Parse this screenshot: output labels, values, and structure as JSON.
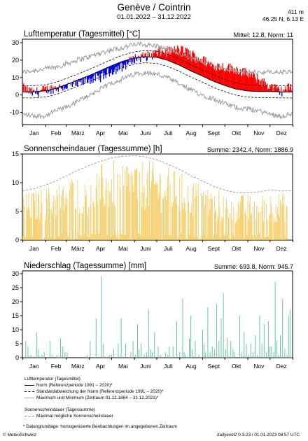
{
  "header": {
    "title": "Genève / Cointrin",
    "period": "01.01.2022 – 31.12.2022",
    "elevation": "411 m",
    "coords": "46.25 N, 6.13 E"
  },
  "months": [
    "Jan",
    "Feb",
    "März",
    "Apr",
    "Mai",
    "Juni",
    "Juli",
    "Aug",
    "Sept",
    "Okt",
    "Nov",
    "Dez"
  ],
  "colors": {
    "warm": "#ff0000",
    "cold": "#0000ff",
    "norm": "#000000",
    "extreme": "#999999",
    "sun": "#f5c242",
    "sunmax": "#888888",
    "rain": "#5cc4a4",
    "frame": "#000000",
    "grid": "#cfcfcf"
  },
  "panels": {
    "temp": {
      "title": "Lufttemperatur (Tagesmittel) [°C]",
      "stats": "Mittel: 12.8, Norm: 11"
    },
    "sun": {
      "title": "Sonnenscheindauer (Tagessumme) [h]",
      "stats": "Summe: 2342.4, Norm: 1886.9"
    },
    "rain": {
      "title": "Niederschlag (Tagessumme) [mm]",
      "stats": "Summe: 693.8, Norm: 945.7"
    }
  },
  "legend": {
    "temp_heading": "Lufttemperatur (Tagesmittel)",
    "norm": "Norm (Referenzperiode 1991 – 2020)*",
    "stddev": "Standardabweichung der Norm (Referenzperiode 1991 – 2020)*",
    "minmax": "Maximum und Minimum (Zeitraum 01.12.1864 – 31.12.2021)*",
    "sun_heading": "Sonnenscheindauer (Tagessumme)",
    "sun_max": "Maximal mögliche Sonnenscheindauer",
    "note": "* Datengrundlage: homogenisierte Beobachtungen im angegebenen Zeitraum"
  },
  "footer": {
    "left": "© MeteoSchweiz",
    "right": "dailyevol2 0.3.23 / 01.01.2023 08:57 UTC"
  },
  "chart_data": [
    {
      "type": "bar",
      "title": "Lufttemperatur (Tagesmittel) [°C]",
      "ylim": [
        -17,
        32
      ],
      "yticks": [
        -10,
        0,
        10,
        20,
        30
      ],
      "x_categories": [
        "Jan",
        "Feb",
        "März",
        "Apr",
        "Mai",
        "Juni",
        "Juli",
        "Aug",
        "Sept",
        "Okt",
        "Nov",
        "Dez"
      ],
      "anchors_day": [
        1,
        15,
        32,
        46,
        60,
        74,
        91,
        105,
        121,
        135,
        152,
        166,
        182,
        196,
        213,
        227,
        244,
        258,
        274,
        288,
        305,
        319,
        335,
        350,
        365
      ],
      "daily_mean_approx": [
        4,
        1,
        3,
        4,
        5,
        6,
        9,
        10,
        14,
        16,
        21,
        22,
        24,
        25,
        26,
        24,
        20,
        17,
        16,
        15,
        12,
        9,
        5,
        2,
        5
      ],
      "norm_approx": [
        1.8,
        1.8,
        2.4,
        3.8,
        6.0,
        8.3,
        11.2,
        13.8,
        16.8,
        19.2,
        21.3,
        22.0,
        21.6,
        20.0,
        17.0,
        14.0,
        10.8,
        8.0,
        5.4,
        3.5,
        2.3,
        2.0,
        2.0,
        1.8,
        1.8
      ],
      "stddev_range": 3.5,
      "max_record_approx": [
        13,
        14,
        15,
        16,
        18,
        20,
        22,
        24,
        26,
        27,
        29,
        29,
        28,
        26,
        24,
        21,
        19,
        17,
        15,
        14,
        13,
        13,
        13,
        13,
        13
      ],
      "min_record_approx": [
        -11,
        -12,
        -12,
        -9,
        -7,
        -4,
        0,
        3,
        7,
        9,
        12,
        13,
        12,
        10,
        6,
        3,
        0,
        -2,
        -5,
        -7,
        -8,
        -9,
        -11,
        -12,
        -11
      ],
      "legend": "Mittel: 12.8, Norm: 11"
    },
    {
      "type": "bar",
      "title": "Sonnenscheindauer (Tagessumme) [h]",
      "ylim": [
        0,
        15
      ],
      "yticks": [
        0,
        5,
        10,
        15
      ],
      "x_categories": [
        "Jan",
        "Feb",
        "März",
        "Apr",
        "Mai",
        "Juni",
        "Juli",
        "Aug",
        "Sept",
        "Okt",
        "Nov",
        "Dez"
      ],
      "max_possible_approx": [
        8.6,
        8.9,
        9.6,
        10.3,
        11.2,
        12.1,
        13.0,
        13.7,
        14.3,
        14.6,
        14.7,
        14.5,
        14.0,
        13.3,
        12.3,
        11.3,
        10.3,
        9.4,
        8.7,
        8.3,
        8.2,
        8.4,
        8.7,
        8.6,
        8.6
      ],
      "daily_values": "approximately 60-100% of the maximum on sunny days, near 0 on overcast days",
      "total": 2342.4,
      "norm": 1886.9
    },
    {
      "type": "bar",
      "title": "Niederschlag (Tagessumme) [mm]",
      "ylim": [
        0,
        31
      ],
      "yticks": [
        0,
        5,
        10,
        15,
        20,
        25,
        30
      ],
      "x_categories": [
        "Jan",
        "Feb",
        "März",
        "Apr",
        "Mai",
        "Juni",
        "Juli",
        "Aug",
        "Sept",
        "Okt",
        "Nov",
        "Dez"
      ],
      "events_day_mm": [
        [
          5,
          6
        ],
        [
          8,
          4
        ],
        [
          12,
          1
        ],
        [
          20,
          9
        ],
        [
          22,
          3
        ],
        [
          27,
          1
        ],
        [
          30,
          2
        ],
        [
          38,
          6
        ],
        [
          41,
          1
        ],
        [
          47,
          1
        ],
        [
          52,
          7
        ],
        [
          55,
          4
        ],
        [
          58,
          2
        ],
        [
          61,
          2
        ],
        [
          88,
          1
        ],
        [
          92,
          6
        ],
        [
          100,
          14
        ],
        [
          107,
          29
        ],
        [
          110,
          5
        ],
        [
          118,
          1
        ],
        [
          121,
          1
        ],
        [
          124,
          3
        ],
        [
          130,
          5
        ],
        [
          134,
          14
        ],
        [
          140,
          5
        ],
        [
          147,
          2
        ],
        [
          150,
          6
        ],
        [
          153,
          1
        ],
        [
          156,
          12
        ],
        [
          158,
          3
        ],
        [
          161,
          5
        ],
        [
          165,
          1
        ],
        [
          168,
          2
        ],
        [
          171,
          17
        ],
        [
          174,
          3
        ],
        [
          176,
          2
        ],
        [
          179,
          9
        ],
        [
          184,
          4
        ],
        [
          187,
          1
        ],
        [
          194,
          2
        ],
        [
          197,
          1
        ],
        [
          199,
          4
        ],
        [
          204,
          4
        ],
        [
          209,
          13
        ],
        [
          213,
          2
        ],
        [
          217,
          21
        ],
        [
          219,
          2
        ],
        [
          221,
          1
        ],
        [
          226,
          7
        ],
        [
          228,
          15
        ],
        [
          230,
          3
        ],
        [
          234,
          6
        ],
        [
          239,
          1
        ],
        [
          244,
          10
        ],
        [
          246,
          5
        ],
        [
          248,
          2
        ],
        [
          251,
          18
        ],
        [
          254,
          2
        ],
        [
          257,
          4
        ],
        [
          260,
          3
        ],
        [
          263,
          19
        ],
        [
          266,
          6
        ],
        [
          269,
          14
        ],
        [
          272,
          23
        ],
        [
          275,
          3
        ],
        [
          277,
          7
        ],
        [
          282,
          6
        ],
        [
          285,
          3
        ],
        [
          287,
          2
        ],
        [
          294,
          15
        ],
        [
          297,
          2
        ],
        [
          300,
          9
        ],
        [
          303,
          5
        ],
        [
          306,
          1
        ],
        [
          309,
          5
        ],
        [
          312,
          2
        ],
        [
          315,
          8
        ],
        [
          318,
          1
        ],
        [
          321,
          15
        ],
        [
          324,
          5
        ],
        [
          327,
          12
        ],
        [
          330,
          2
        ],
        [
          333,
          13
        ],
        [
          335,
          4
        ],
        [
          337,
          4
        ],
        [
          340,
          2
        ],
        [
          342,
          27
        ],
        [
          344,
          6
        ],
        [
          346,
          1
        ],
        [
          349,
          8
        ],
        [
          352,
          21
        ],
        [
          355,
          3
        ],
        [
          358,
          1
        ],
        [
          360,
          15
        ],
        [
          362,
          17
        ]
      ],
      "total": 693.8,
      "norm": 945.7
    }
  ]
}
